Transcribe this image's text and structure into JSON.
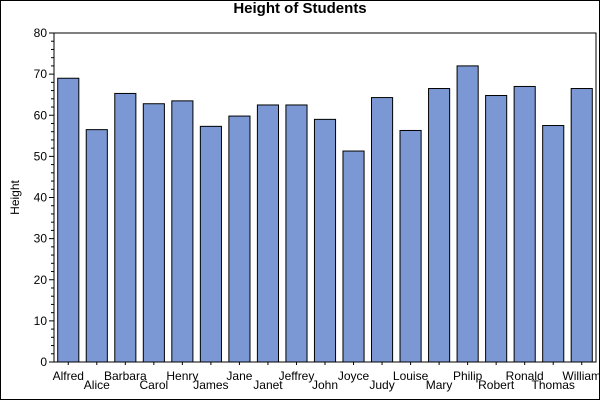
{
  "chart_data": {
    "type": "bar",
    "title": "Height of Students",
    "xlabel": "",
    "ylabel": "Height",
    "categories": [
      "Alfred",
      "Alice",
      "Barbara",
      "Carol",
      "Henry",
      "James",
      "Jane",
      "Janet",
      "Jeffrey",
      "John",
      "Joyce",
      "Judy",
      "Louise",
      "Mary",
      "Philip",
      "Robert",
      "Ronald",
      "Thomas",
      "William"
    ],
    "values": [
      69.0,
      56.5,
      65.3,
      62.8,
      63.5,
      57.3,
      59.8,
      62.5,
      62.5,
      59.0,
      51.3,
      64.3,
      56.3,
      66.5,
      72.0,
      64.8,
      67.0,
      57.5,
      66.5
    ],
    "ylim": [
      0,
      80
    ],
    "yticks": [
      "0",
      "10",
      "20",
      "30",
      "40",
      "50",
      "60",
      "70",
      "80"
    ],
    "bar_color": "#7c98d4",
    "bar_edge_color": "#000000",
    "grid": false,
    "legend": "none"
  }
}
